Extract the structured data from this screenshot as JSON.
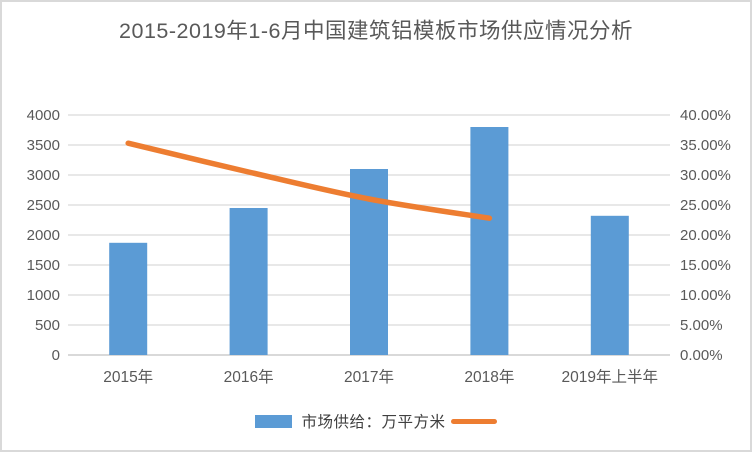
{
  "title": "2015-2019年1-6月中国建筑铝模板市场供应情况分析",
  "legend": {
    "bar_label": "市场供给：万平方米",
    "line_label": ""
  },
  "colors": {
    "bar": "#5B9BD5",
    "line": "#ED7D31",
    "grid": "#D9D9D9",
    "axis": "#D9D9D9",
    "text": "#595959",
    "border": "#D9D9D9"
  },
  "chart_data": {
    "type": "bar",
    "subtype": "bar+line combo",
    "title": "2015-2019年1-6月中国建筑铝模板市场供应情况分析",
    "categories": [
      "2015年",
      "2016年",
      "2017年",
      "2018年",
      "2019年上半年"
    ],
    "series": [
      {
        "name": "市场供给：万平方米",
        "type": "bar",
        "axis": "left",
        "values": [
          1870,
          2450,
          3100,
          3800,
          2320
        ]
      },
      {
        "name": "",
        "type": "line",
        "axis": "right",
        "values_percent": [
          35.3,
          30.5,
          26.0,
          22.8,
          null
        ]
      }
    ],
    "left_axis": {
      "min": 0,
      "max": 4000,
      "step": 500,
      "ticks": [
        "4000",
        "3500",
        "3000",
        "2500",
        "2000",
        "1500",
        "1000",
        "500",
        "0"
      ]
    },
    "right_axis": {
      "min": 0,
      "max": 40,
      "step": 5,
      "ticks": [
        "40.00%",
        "35.00%",
        "30.00%",
        "25.00%",
        "20.00%",
        "15.00%",
        "10.00%",
        "5.00%",
        "0.00%"
      ]
    },
    "grid": "horizontal",
    "legend_position": "bottom",
    "xlabel": "",
    "ylabel_left": "",
    "ylabel_right": ""
  }
}
